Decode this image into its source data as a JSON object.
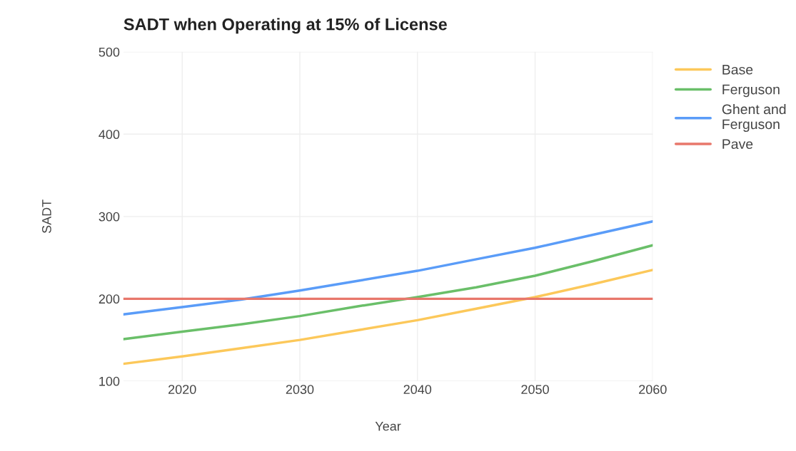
{
  "chart_data": {
    "type": "line",
    "title": "SADT when Operating at 15% of License",
    "xlabel": "Year",
    "ylabel": "SADT",
    "x": [
      2015,
      2020,
      2025,
      2030,
      2035,
      2040,
      2045,
      2050,
      2055,
      2060
    ],
    "series": [
      {
        "name": "Base",
        "color": "#fcc85a",
        "values": [
          121,
          130,
          140,
          150,
          162,
          174,
          188,
          202,
          218,
          235
        ]
      },
      {
        "name": "Ferguson",
        "color": "#6abf69",
        "values": [
          151,
          160,
          169,
          179,
          191,
          202,
          214,
          228,
          246,
          265
        ]
      },
      {
        "name": "Ghent and\nFerguson",
        "color": "#5a9cf8",
        "values": [
          181,
          190,
          199,
          210,
          222,
          234,
          248,
          262,
          278,
          294
        ]
      },
      {
        "name": "Pave",
        "color": "#e8776b",
        "values": [
          200,
          200,
          200,
          200,
          200,
          200,
          200,
          200,
          200,
          200
        ]
      }
    ],
    "xlim": [
      2015,
      2060
    ],
    "ylim": [
      100,
      500
    ],
    "xticks": [
      2020,
      2030,
      2040,
      2050,
      2060
    ],
    "yticks": [
      100,
      200,
      300,
      400,
      500
    ],
    "grid": true,
    "legend": "top right",
    "marker": "none",
    "line_style": "solid"
  }
}
